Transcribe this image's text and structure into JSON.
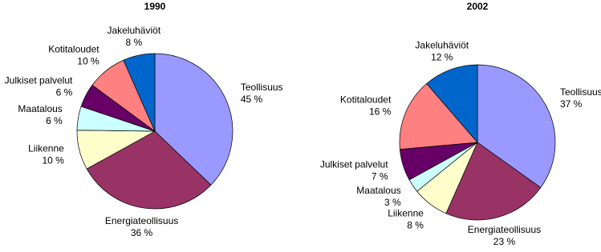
{
  "chart_data": [
    {
      "type": "pie",
      "title": "1990",
      "categories": [
        "Teollisuus",
        "Energiateollisuus",
        "Liikenne",
        "Maatalous",
        "Julkiset palvelut",
        "Kotitaloudet",
        "Jakeluhäviöt"
      ],
      "values": [
        45,
        36,
        10,
        6,
        6,
        10,
        8
      ],
      "value_labels": [
        "45 %",
        "36 %",
        "10 %",
        "6 %",
        "6 %",
        "10 %",
        "8 %"
      ],
      "colors": [
        "#9999ff",
        "#993366",
        "#ffffcc",
        "#ccffff",
        "#660066",
        "#ff8080",
        "#0066cc"
      ]
    },
    {
      "type": "pie",
      "title": "2002",
      "categories": [
        "Teollisuus",
        "Energiateollisuus",
        "Liikenne",
        "Maatalous",
        "Julkiset palvelut",
        "Kotitaloudet",
        "Jakeluhäviöt"
      ],
      "values": [
        37,
        23,
        8,
        3,
        7,
        16,
        12
      ],
      "value_labels": [
        "37 %",
        "23 %",
        "8 %",
        "3 %",
        "7 %",
        "16 %",
        "12 %"
      ],
      "colors": [
        "#9999ff",
        "#993366",
        "#ffffcc",
        "#ccffff",
        "#660066",
        "#ff8080",
        "#0066cc"
      ]
    }
  ]
}
